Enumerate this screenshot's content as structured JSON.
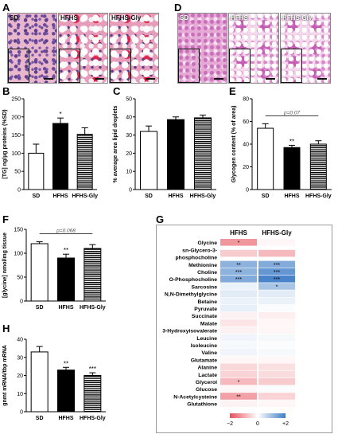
{
  "panel_labels": {
    "A": "A",
    "B": "B",
    "C": "C",
    "D": "D",
    "E": "E",
    "F": "F",
    "G": "G",
    "H": "H"
  },
  "histology_A": [
    {
      "caption": "SD",
      "style": "he-base"
    },
    {
      "caption": "HFHS",
      "style": "he-fat"
    },
    {
      "caption": "HFHS-Gly",
      "style": "he-fat"
    }
  ],
  "histology_D": [
    {
      "caption": "SD",
      "style": "pas-base"
    },
    {
      "caption": "HFHS",
      "style": "pas-fat"
    },
    {
      "caption": "HFHS-Gly",
      "style": "pas-fat"
    }
  ],
  "colors": {
    "bar_sd": "#ffffff",
    "bar_hfhs": "#000000",
    "heat_neg": "#e8505b",
    "heat_pos": "#3f7ec7",
    "frame": "#000000"
  },
  "chart_data": [
    {
      "id": "B",
      "type": "bar",
      "categories": [
        "SD",
        "HFHS",
        "HFHS-Gly"
      ],
      "values": [
        100,
        182,
        152
      ],
      "errors": [
        25,
        15,
        18
      ],
      "ylim": [
        0,
        250
      ],
      "yticks": [
        "0",
        "50",
        "100",
        "150",
        "200",
        "250"
      ],
      "ylabel": "[TG] ng/µg proteins (%SD)",
      "sig": [
        "",
        "*",
        ""
      ],
      "pvalue": ""
    },
    {
      "id": "C",
      "type": "bar",
      "categories": [
        "SD",
        "HFHS",
        "HFHS-Gly"
      ],
      "values": [
        32,
        38.5,
        39.5
      ],
      "errors": [
        3,
        1.5,
        1.5
      ],
      "ylim": [
        0,
        50
      ],
      "yticks": [
        "0",
        "10",
        "20",
        "30",
        "40",
        "50"
      ],
      "ylabel": "% average area lipid droplets",
      "sig": [
        "",
        "",
        ""
      ],
      "pvalue": ""
    },
    {
      "id": "E",
      "type": "bar",
      "categories": [
        "SD",
        "HFHS",
        "HFHS-Gly"
      ],
      "values": [
        54,
        37,
        40
      ],
      "errors": [
        4,
        2,
        3
      ],
      "ylim": [
        0,
        80
      ],
      "yticks": [
        "0",
        "20",
        "40",
        "60",
        "80"
      ],
      "ylabel": "Glycogen content (% of area)",
      "sig": [
        "",
        "**",
        ""
      ],
      "pvalue": "p=0.07"
    },
    {
      "id": "F",
      "type": "bar",
      "categories": [
        "SD",
        "HFHS",
        "HFHS-Gly"
      ],
      "values": [
        120,
        90,
        110
      ],
      "errors": [
        4,
        8,
        8
      ],
      "ylim": [
        0,
        150
      ],
      "yticks": [
        "0",
        "50",
        "100",
        "150"
      ],
      "ylabel": "[glycine] nmol/mg tissue",
      "sig": [
        "",
        "**",
        ""
      ],
      "pvalue": "p=0.068"
    },
    {
      "id": "H",
      "type": "bar",
      "categories": [
        "SD",
        "HFHS",
        "HFHS-Gly"
      ],
      "values": [
        33,
        23,
        20
      ],
      "errors": [
        3,
        1.5,
        1.5
      ],
      "ylim": [
        0,
        40
      ],
      "yticks": [
        "0",
        "10",
        "20",
        "30",
        "40"
      ],
      "ylabel": "gnmt mRNA/tbp mRNA",
      "sig": [
        "",
        "**",
        "***"
      ],
      "pvalue": ""
    },
    {
      "id": "G",
      "type": "heatmap",
      "columns": [
        "HFHS",
        "HFHS-Gly"
      ],
      "rows": [
        {
          "name": [
            "Glycine"
          ],
          "values": [
            -1.2,
            -0.1
          ],
          "sig": [
            "*",
            ""
          ]
        },
        {
          "name": [
            "sn-Glycero-3-",
            "phosphocholine"
          ],
          "values": [
            -0.6,
            -0.8
          ],
          "sig": [
            "",
            ""
          ]
        },
        {
          "name": [
            "Methionine"
          ],
          "values": [
            1.2,
            1.3
          ],
          "sig": [
            "**",
            "***"
          ]
        },
        {
          "name": [
            "Choline"
          ],
          "values": [
            1.2,
            1.6
          ],
          "sig": [
            "***",
            "***"
          ]
        },
        {
          "name": [
            "O-Phosphocholine"
          ],
          "values": [
            1.3,
            1.9
          ],
          "sig": [
            "***",
            "***"
          ]
        },
        {
          "name": [
            "Sarcosine"
          ],
          "values": [
            0.2,
            0.9
          ],
          "sig": [
            "",
            "*"
          ]
        },
        {
          "name": [
            "N,N-Dimethylglycine"
          ],
          "values": [
            0.3,
            0.3
          ],
          "sig": [
            "",
            ""
          ]
        },
        {
          "name": [
            "Betaine"
          ],
          "values": [
            0.2,
            0.2
          ],
          "sig": [
            "",
            ""
          ]
        },
        {
          "name": [
            "Pyruvate"
          ],
          "values": [
            0.25,
            0.05
          ],
          "sig": [
            "",
            ""
          ]
        },
        {
          "name": [
            "Succinate"
          ],
          "values": [
            -0.15,
            -0.2
          ],
          "sig": [
            "",
            ""
          ]
        },
        {
          "name": [
            "Malate"
          ],
          "values": [
            -0.3,
            -0.1
          ],
          "sig": [
            "",
            ""
          ]
        },
        {
          "name": [
            "3-Hydroxyisovalerate"
          ],
          "values": [
            -0.15,
            -0.1
          ],
          "sig": [
            "",
            ""
          ]
        },
        {
          "name": [
            "Leucine"
          ],
          "values": [
            0.15,
            0.1
          ],
          "sig": [
            "",
            ""
          ]
        },
        {
          "name": [
            "Isoleucine"
          ],
          "values": [
            0.1,
            0.05
          ],
          "sig": [
            "",
            ""
          ]
        },
        {
          "name": [
            "Valine"
          ],
          "values": [
            0.15,
            0.1
          ],
          "sig": [
            "",
            ""
          ]
        },
        {
          "name": [
            "Glutamate"
          ],
          "values": [
            -0.1,
            -0.1
          ],
          "sig": [
            "",
            ""
          ]
        },
        {
          "name": [
            "Alanine"
          ],
          "values": [
            -0.45,
            -0.35
          ],
          "sig": [
            "",
            ""
          ]
        },
        {
          "name": [
            "Lactate"
          ],
          "values": [
            -0.5,
            -0.4
          ],
          "sig": [
            "",
            ""
          ]
        },
        {
          "name": [
            "Glycerol"
          ],
          "values": [
            -0.8,
            -0.6
          ],
          "sig": [
            "*",
            ""
          ]
        },
        {
          "name": [
            "Glucose"
          ],
          "values": [
            -0.1,
            0.05
          ],
          "sig": [
            "",
            ""
          ]
        },
        {
          "name": [
            "N-Acetylcysteine"
          ],
          "values": [
            -1.1,
            -0.5
          ],
          "sig": [
            "**",
            ""
          ]
        },
        {
          "name": [
            "Glutathione"
          ],
          "values": [
            -0.15,
            -0.1
          ],
          "sig": [
            "",
            ""
          ]
        }
      ],
      "scale": {
        "min": -2,
        "max": 2,
        "labels": [
          "−2",
          "0",
          "+2"
        ]
      }
    }
  ]
}
